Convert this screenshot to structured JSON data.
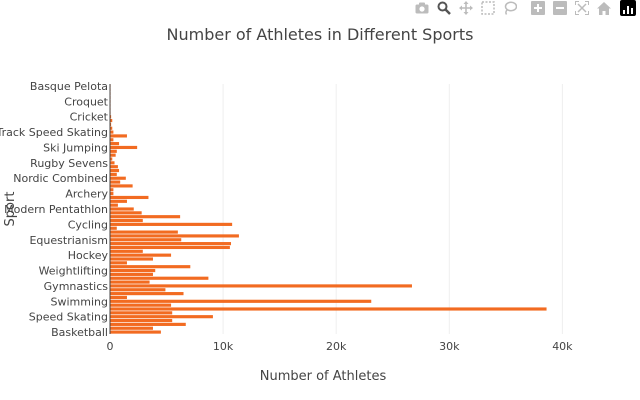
{
  "modebar": {
    "buttons": [
      "camera-icon",
      "zoom-icon",
      "pan-icon",
      "box-select-icon",
      "lasso-select-icon",
      "zoom-in-icon",
      "zoom-out-icon",
      "autoscale-icon",
      "reset-axes-icon",
      "plotly-logo-icon"
    ],
    "active": "zoom-icon"
  },
  "chart_data": {
    "type": "bar",
    "orientation": "horizontal",
    "title": "Number of Athletes in Different Sports",
    "xlabel": "Number of Athletes",
    "ylabel": "Sport",
    "xlim": [
      0,
      42000
    ],
    "xticks": [
      0,
      10000,
      20000,
      30000,
      40000
    ],
    "xtick_labels": [
      "0",
      "10k",
      "20k",
      "30k",
      "40k"
    ],
    "grid": true,
    "bar_color": "#f26b21",
    "categories": [
      "Basketball",
      "",
      "",
      "",
      "Speed Skating",
      "",
      "",
      "",
      "Swimming",
      "",
      "",
      "",
      "Gymnastics",
      "",
      "",
      "",
      "Weightlifting",
      "",
      "",
      "",
      "Hockey",
      "",
      "",
      "",
      "Equestrianism",
      "",
      "",
      "",
      "Cycling",
      "",
      "",
      "",
      "Modern Pentathlon",
      "",
      "",
      "",
      "Archery",
      "",
      "",
      "",
      "Nordic Combined",
      "",
      "",
      "",
      "Rugby Sevens",
      "",
      "",
      "",
      "Ski Jumping",
      "",
      "",
      "",
      "Short Track Speed Skating",
      "",
      "",
      "",
      "Cricket",
      "",
      "",
      "",
      "Croquet",
      "",
      "",
      "",
      "Basque Pelota"
    ],
    "values": [
      4500,
      3800,
      6700,
      5500,
      9100,
      5500,
      38600,
      5400,
      23100,
      1500,
      6500,
      4900,
      26700,
      3500,
      8700,
      3800,
      4000,
      7100,
      1500,
      3800,
      5400,
      2900,
      10600,
      10700,
      6300,
      11400,
      6000,
      600,
      10800,
      2900,
      6200,
      2800,
      2100,
      700,
      1500,
      3400,
      300,
      300,
      2000,
      900,
      1400,
      600,
      800,
      700,
      400,
      200,
      500,
      600,
      2400,
      800,
      300,
      1500,
      300,
      200,
      100,
      200,
      100,
      50,
      50,
      50,
      50,
      50,
      50,
      50,
      50
    ]
  }
}
